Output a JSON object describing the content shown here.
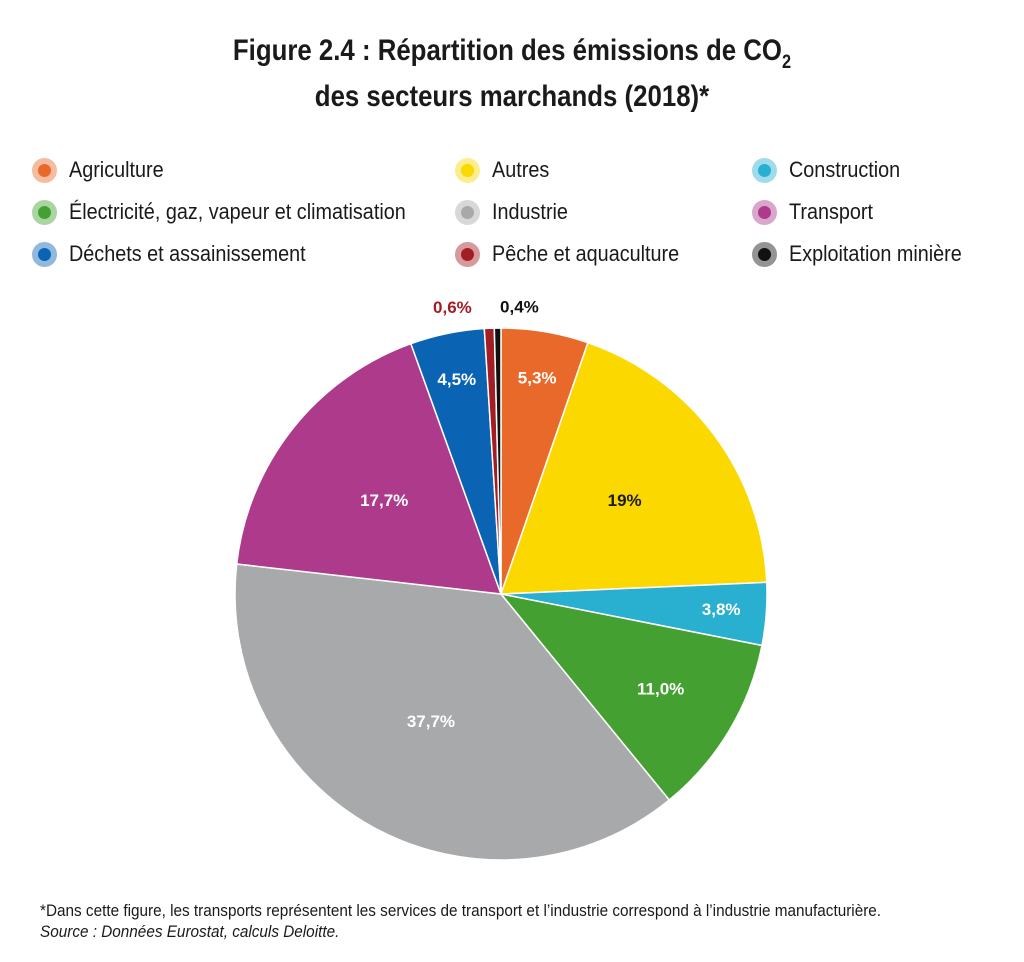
{
  "title": {
    "line1_prefix": "Figure 2.4 : Répartition des émissions de CO",
    "line1_subscript": "2",
    "line2": "des secteurs marchands (2018)*"
  },
  "legend": [
    {
      "label": "Agriculture",
      "color": "#e8692a"
    },
    {
      "label": "Autres",
      "color": "#fad800"
    },
    {
      "label": "Construction",
      "color": "#29afd0"
    },
    {
      "label": "Électricité, gaz, vapeur et climatisation",
      "color": "#45a032"
    },
    {
      "label": "Industrie",
      "color": "#a8a9ab"
    },
    {
      "label": "Transport",
      "color": "#ad3a8b"
    },
    {
      "label": "Déchets et assainissement",
      "color": "#0b63b4"
    },
    {
      "label": "Pêche et aquaculture",
      "color": "#a31d24"
    },
    {
      "label": "Exploitation minière",
      "color": "#111111"
    }
  ],
  "chart_data": {
    "type": "pie",
    "slices": [
      {
        "name": "Agriculture",
        "value": 5.3,
        "label": "5,3%",
        "color": "#e8692a",
        "label_color": "#ffffff"
      },
      {
        "name": "Autres",
        "value": 19,
        "label": "19%",
        "color": "#fad800",
        "label_color": "#1a1a1a"
      },
      {
        "name": "Construction",
        "value": 3.8,
        "label": "3,8%",
        "color": "#29afd0",
        "label_color": "#ffffff"
      },
      {
        "name": "Électricité, gaz, vapeur et climatisation",
        "value": 11.0,
        "label": "11,0%",
        "color": "#45a032",
        "label_color": "#ffffff"
      },
      {
        "name": "Industrie",
        "value": 37.7,
        "label": "37,7%",
        "color": "#a8a9ab",
        "label_color": "#ffffff"
      },
      {
        "name": "Transport",
        "value": 17.7,
        "label": "17,7%",
        "color": "#ad3a8b",
        "label_color": "#ffffff"
      },
      {
        "name": "Déchets et assainissement",
        "value": 4.5,
        "label": "4,5%",
        "color": "#0b63b4",
        "label_color": "#ffffff"
      },
      {
        "name": "Pêche et aquaculture",
        "value": 0.6,
        "label": "0,6%",
        "color": "#a31d24",
        "label_color": "#a31d24"
      },
      {
        "name": "Exploitation minière",
        "value": 0.4,
        "label": "0,4%",
        "color": "#111111",
        "label_color": "#111111"
      }
    ],
    "start": "12 o'clock",
    "direction": "clockwise",
    "legend_position": "top"
  },
  "footnote": {
    "note": "*Dans cette figure, les transports représentent les services de transport et l’industrie correspond à l’industrie manufacturière.",
    "source": "Source : Données Eurostat, calculs Deloitte."
  }
}
